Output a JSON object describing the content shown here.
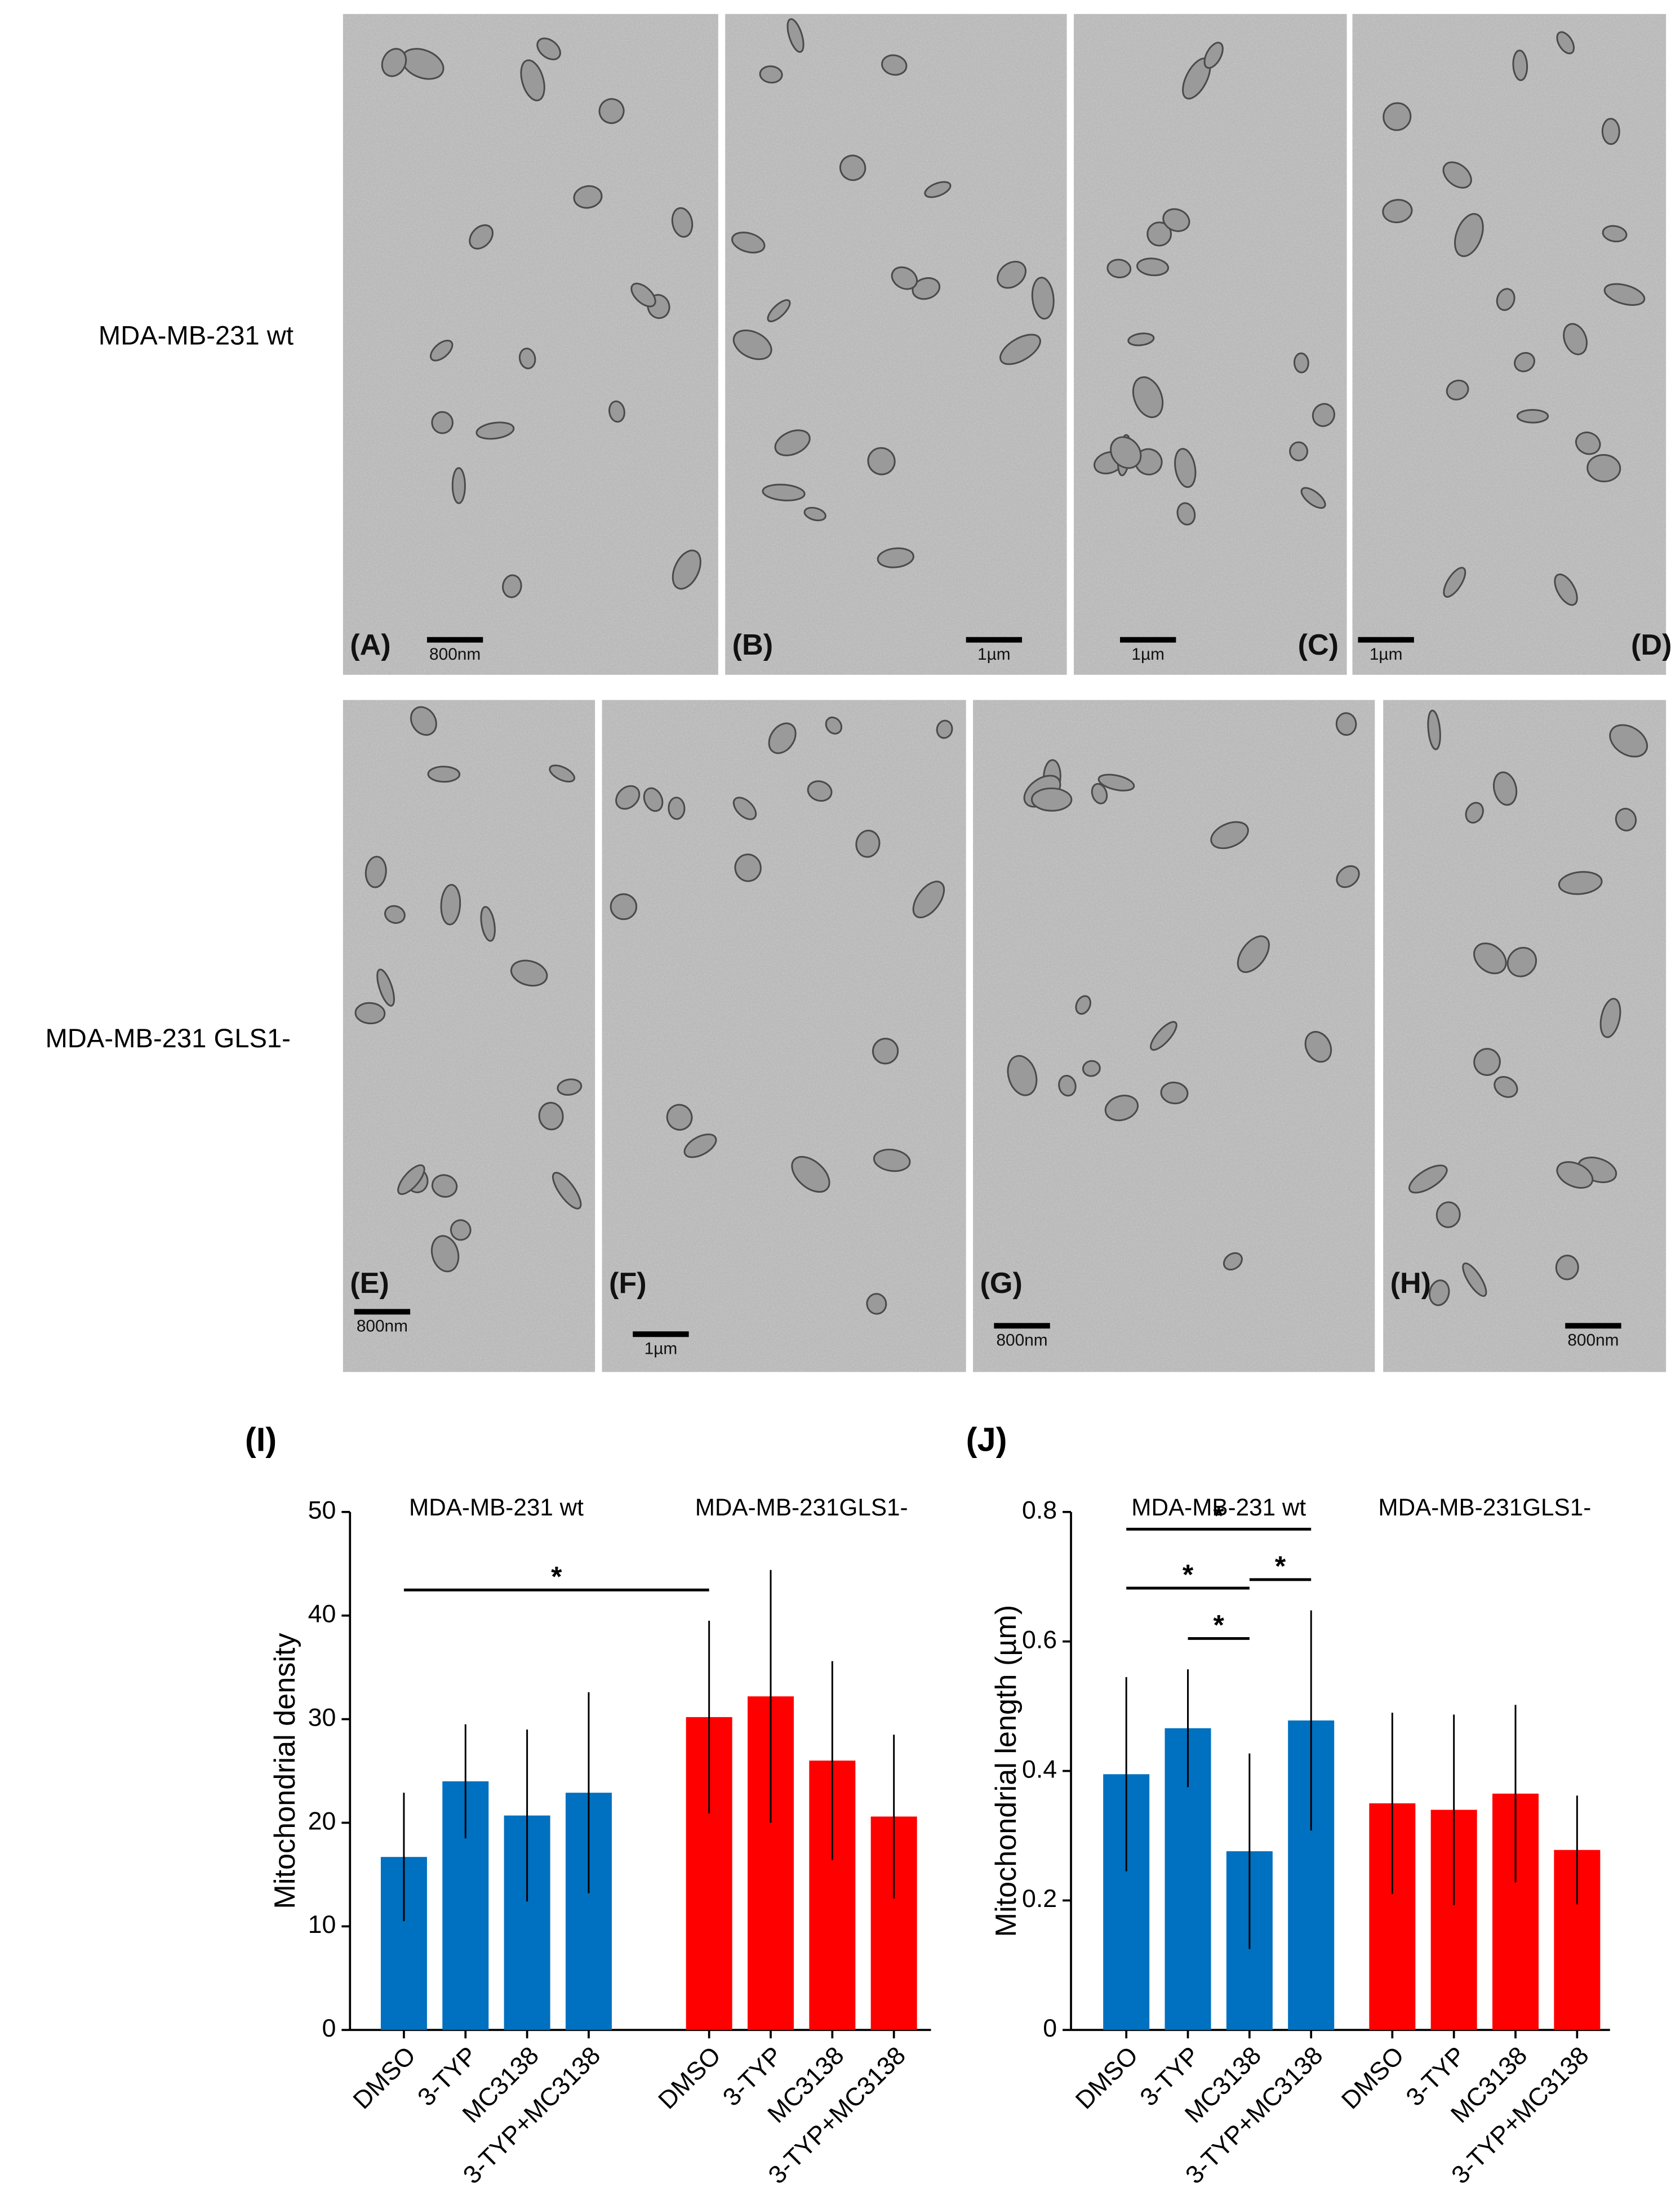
{
  "row_labels": [
    "MDA-MB-231 wt",
    "MDA-MB-231 GLS1-"
  ],
  "panels": [
    {
      "label": "(A)",
      "scale": "800nm"
    },
    {
      "label": "(B)",
      "scale": "1µm"
    },
    {
      "label": "(C)",
      "scale": "1µm"
    },
    {
      "label": "(D)",
      "scale": "1µm"
    },
    {
      "label": "(E)",
      "scale": "800nm"
    },
    {
      "label": "(F)",
      "scale": "1µm"
    },
    {
      "label": "(G)",
      "scale": "800nm"
    },
    {
      "label": "(H)",
      "scale": "800nm"
    }
  ],
  "chart_data": [
    {
      "type": "bar",
      "panel_label": "(I)",
      "y_label": "Mitochondrial density",
      "ylim": [
        0,
        50
      ],
      "yticks": [
        0,
        10,
        20,
        30,
        40,
        50
      ],
      "groups": [
        {
          "name": "MDA-MB-231 wt",
          "color": "#0070c0",
          "categories": [
            "DMSO",
            "3-TYP",
            "MC3138",
            "3-TYP+MC3138"
          ],
          "values": [
            16.7,
            24,
            20.7,
            22.9
          ],
          "errors": [
            6.2,
            5.5,
            8.3,
            9.7
          ]
        },
        {
          "name": "MDA-MB-231GLS1-",
          "color": "#ff0000",
          "categories": [
            "DMSO",
            "3-TYP",
            "MC3138",
            "3-TYP+MC3138"
          ],
          "values": [
            30.2,
            32.2,
            26,
            20.6
          ],
          "errors": [
            9.3,
            12.2,
            9.6,
            7.9
          ]
        }
      ],
      "significance": [
        {
          "from": [
            0,
            0
          ],
          "to": [
            1,
            0
          ],
          "label": "*"
        }
      ]
    },
    {
      "type": "bar",
      "panel_label": "(J)",
      "y_label": "Mitochondrial length (µm)",
      "ylim": [
        0,
        0.8
      ],
      "yticks": [
        0,
        0.2,
        0.4,
        0.6,
        0.8
      ],
      "groups": [
        {
          "name": "MDA-MB-231 wt",
          "color": "#0070c0",
          "categories": [
            "DMSO",
            "3-TYP",
            "MC3138",
            "3-TYP+MC3138"
          ],
          "values": [
            0.395,
            0.466,
            0.276,
            0.478
          ],
          "errors": [
            0.15,
            0.091,
            0.151,
            0.17
          ]
        },
        {
          "name": "MDA-MB-231GLS1-",
          "color": "#ff0000",
          "categories": [
            "DMSO",
            "3-TYP",
            "MC3138",
            "3-TYP+MC3138"
          ],
          "values": [
            0.35,
            0.34,
            0.365,
            0.278
          ],
          "errors": [
            0.14,
            0.147,
            0.137,
            0.084
          ]
        }
      ],
      "significance": [
        {
          "from": [
            0,
            1
          ],
          "to": [
            0,
            2
          ],
          "label": "*"
        },
        {
          "from": [
            0,
            0
          ],
          "to": [
            0,
            2
          ],
          "label": "*"
        },
        {
          "from": [
            0,
            2
          ],
          "to": [
            0,
            3
          ],
          "label": "*"
        },
        {
          "from": [
            0,
            0
          ],
          "to": [
            0,
            3
          ],
          "label": "*"
        }
      ]
    }
  ]
}
